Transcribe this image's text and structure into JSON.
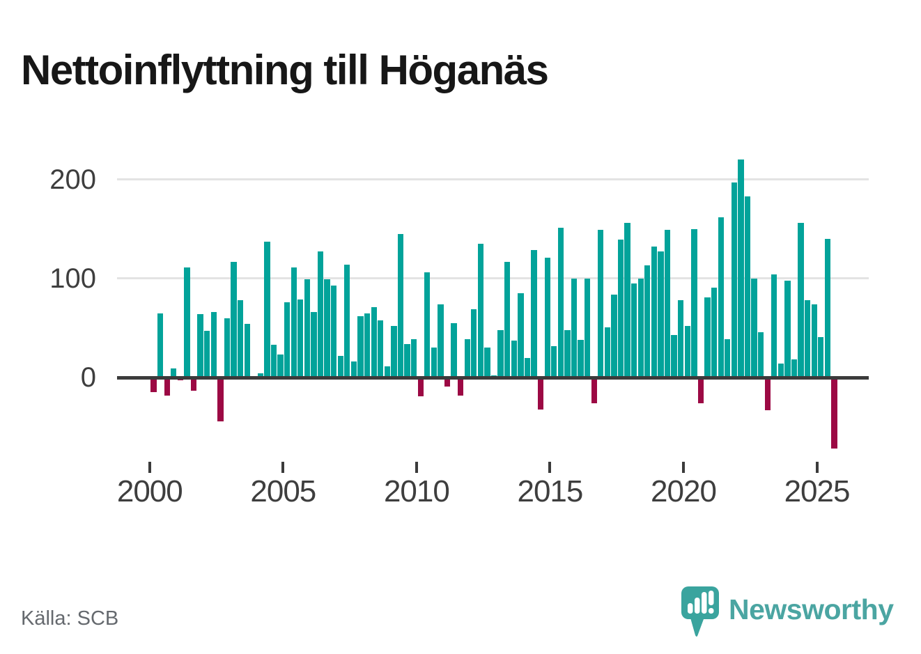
{
  "title": "Nettoinflyttning till Höganäs",
  "source": "Källa: SCB",
  "branding": {
    "wordmark": "Newsworthy",
    "icon": "newsworthy-speech-bubble-chart"
  },
  "colors": {
    "positive": "#02a39a",
    "negative": "#9c0944",
    "axis": "#3b3b3b",
    "gridline": "#e3e3e3",
    "tick_label": "#3e3e3e",
    "title_text": "#171717",
    "source_text": "#65696e",
    "logo": "#3aa49e",
    "logo_text": "#4ba5a2",
    "background": "#ffffff"
  },
  "chart_data": {
    "type": "bar",
    "title": "Nettoinflyttning till Höganäs",
    "frequency": "quarterly",
    "grid": "horizontal",
    "legend": "none",
    "xlabel": "",
    "ylabel": "",
    "ylim": [
      -90,
      235
    ],
    "y_ticks": [
      0,
      100,
      200
    ],
    "y_tick_labels": [
      "0",
      "100",
      "200"
    ],
    "x_tick_years": [
      2000,
      2005,
      2010,
      2015,
      2020,
      2025
    ],
    "x_tick_labels": [
      "2000",
      "2005",
      "2010",
      "2015",
      "2020",
      "2025"
    ],
    "categories": [
      "2000Q1",
      "2000Q2",
      "2000Q3",
      "2000Q4",
      "2001Q1",
      "2001Q2",
      "2001Q3",
      "2001Q4",
      "2002Q1",
      "2002Q2",
      "2002Q3",
      "2002Q4",
      "2003Q1",
      "2003Q2",
      "2003Q3",
      "2003Q4",
      "2004Q1",
      "2004Q2",
      "2004Q3",
      "2004Q4",
      "2005Q1",
      "2005Q2",
      "2005Q3",
      "2005Q4",
      "2006Q1",
      "2006Q2",
      "2006Q3",
      "2006Q4",
      "2007Q1",
      "2007Q2",
      "2007Q3",
      "2007Q4",
      "2008Q1",
      "2008Q2",
      "2008Q3",
      "2008Q4",
      "2009Q1",
      "2009Q2",
      "2009Q3",
      "2009Q4",
      "2010Q1",
      "2010Q2",
      "2010Q3",
      "2010Q4",
      "2011Q1",
      "2011Q2",
      "2011Q3",
      "2011Q4",
      "2012Q1",
      "2012Q2",
      "2012Q3",
      "2012Q4",
      "2013Q1",
      "2013Q2",
      "2013Q3",
      "2013Q4",
      "2014Q1",
      "2014Q2",
      "2014Q3",
      "2014Q4",
      "2015Q1",
      "2015Q2",
      "2015Q3",
      "2015Q4",
      "2016Q1",
      "2016Q2",
      "2016Q3",
      "2016Q4",
      "2017Q1",
      "2017Q2",
      "2017Q3",
      "2017Q4",
      "2018Q1",
      "2018Q2",
      "2018Q3",
      "2018Q4",
      "2019Q1",
      "2019Q2",
      "2019Q3",
      "2019Q4",
      "2020Q1",
      "2020Q2",
      "2020Q3",
      "2020Q4",
      "2021Q1",
      "2021Q2",
      "2021Q3",
      "2021Q4",
      "2022Q1",
      "2022Q2",
      "2022Q3",
      "2022Q4",
      "2023Q1",
      "2023Q2",
      "2023Q3",
      "2023Q4",
      "2024Q1",
      "2024Q2",
      "2024Q3",
      "2024Q4",
      "2025Q1",
      "2025Q2",
      "2025Q3"
    ],
    "values": [
      -15,
      65,
      -18,
      9,
      -3,
      111,
      -13,
      64,
      47,
      66,
      -44,
      60,
      117,
      78,
      54,
      0,
      4,
      137,
      33,
      23,
      76,
      111,
      79,
      99,
      66,
      127,
      99,
      93,
      22,
      114,
      16,
      62,
      65,
      71,
      58,
      11,
      52,
      145,
      34,
      39,
      -19,
      106,
      30,
      74,
      -9,
      55,
      -18,
      39,
      69,
      135,
      30,
      2,
      48,
      117,
      37,
      85,
      20,
      129,
      -32,
      121,
      32,
      151,
      48,
      100,
      38,
      100,
      -26,
      149,
      51,
      84,
      139,
      156,
      95,
      100,
      113,
      132,
      127,
      149,
      43,
      78,
      52,
      150,
      -26,
      81,
      91,
      162,
      39,
      197,
      220,
      183,
      100,
      46,
      -33,
      104,
      14,
      98,
      18,
      156,
      78,
      74,
      41,
      140,
      -72
    ]
  }
}
